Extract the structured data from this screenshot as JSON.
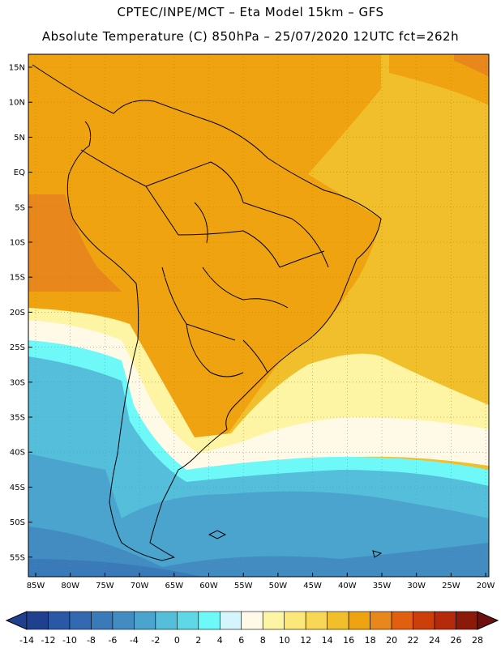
{
  "header": {
    "title_line1": "CPTEC/INPE/MCT –  Eta Model 15km – GFS",
    "title_line2": "Absolute Temperature (C) 850hPa – 25/07/2020 12UTC fct=262h"
  },
  "map": {
    "lat_labels": [
      "15N",
      "10N",
      "5N",
      "EQ",
      "5S",
      "10S",
      "15S",
      "20S",
      "25S",
      "30S",
      "35S",
      "40S",
      "45S",
      "50S",
      "55S"
    ],
    "lon_labels": [
      "85W",
      "80W",
      "75W",
      "70W",
      "65W",
      "60W",
      "55W",
      "50W",
      "45W",
      "40W",
      "35W",
      "30W",
      "25W",
      "20W"
    ]
  },
  "colorbar": {
    "labels": [
      "-14",
      "-12",
      "-10",
      "-8",
      "-6",
      "-4",
      "-2",
      "0",
      "2",
      "4",
      "6",
      "8",
      "10",
      "12",
      "14",
      "16",
      "18",
      "20",
      "22",
      "24",
      "26",
      "28"
    ],
    "colors": [
      "#1f3f8f",
      "#2a57a6",
      "#3269b2",
      "#3a7ab9",
      "#428cc1",
      "#4ba4cd",
      "#55bedb",
      "#5ed8e6",
      "#6ff8f8",
      "#d4f5fb",
      "#fff9e8",
      "#fdf5a3",
      "#fbe77a",
      "#f8d757",
      "#f2bf2c",
      "#efa311",
      "#e8871c",
      "#e06010",
      "#cc3f0b",
      "#b52a0b",
      "#8c1a0b",
      "#6e1010"
    ]
  }
}
